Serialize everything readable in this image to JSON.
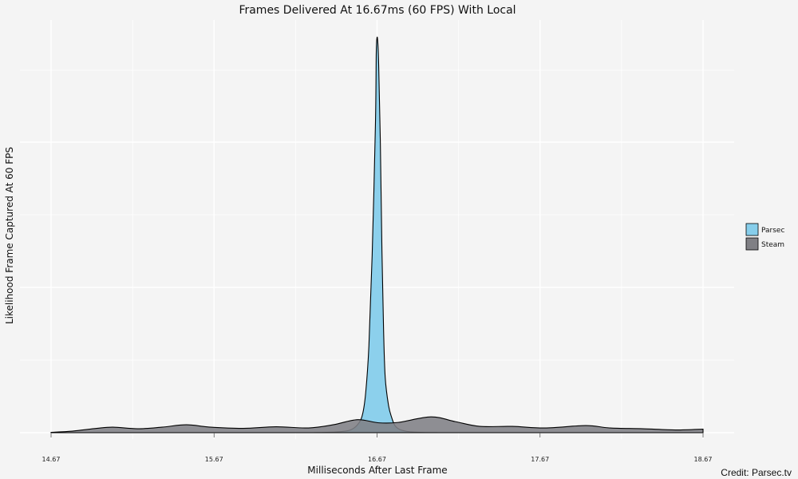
{
  "chart_data": {
    "type": "area",
    "title": "Frames Delivered At 16.67ms (60 FPS) With Local",
    "xlabel": "Milliseconds After Last Frame",
    "ylabel": "Likelihood Frame Captured At 60 FPS",
    "xlim": [
      14.67,
      18.67
    ],
    "ylim": [
      0,
      1.0
    ],
    "x_ticks": [
      "14.67",
      "15.67",
      "16.67",
      "17.67",
      "18.67"
    ],
    "y_tick_labels_shown": false,
    "grid": true,
    "legend": {
      "position": "right",
      "entries": [
        "Parsec",
        "Steam"
      ]
    },
    "colors": {
      "Parsec": "#87ceeb",
      "Steam": "#808085",
      "outline": "#000000",
      "grid": "#ffffff",
      "background": "#f4f4f4"
    },
    "series": [
      {
        "name": "Parsec",
        "points": [
          [
            16.28,
            0
          ],
          [
            16.42,
            0.002
          ],
          [
            16.5,
            0.006
          ],
          [
            16.55,
            0.02
          ],
          [
            16.58,
            0.045
          ],
          [
            16.6,
            0.1
          ],
          [
            16.62,
            0.22
          ],
          [
            16.64,
            0.45
          ],
          [
            16.66,
            0.78
          ],
          [
            16.665,
            0.96
          ],
          [
            16.67,
            1.0
          ],
          [
            16.675,
            0.985
          ],
          [
            16.68,
            0.93
          ],
          [
            16.69,
            0.74
          ],
          [
            16.7,
            0.46
          ],
          [
            16.71,
            0.26
          ],
          [
            16.72,
            0.14
          ],
          [
            16.74,
            0.07
          ],
          [
            16.76,
            0.038
          ],
          [
            16.78,
            0.018
          ],
          [
            16.81,
            0.008
          ],
          [
            16.86,
            0.003
          ],
          [
            16.95,
            0.0006
          ],
          [
            17.05,
            0
          ]
        ]
      },
      {
        "name": "Steam",
        "points": [
          [
            14.67,
            0.001
          ],
          [
            14.8,
            0.004
          ],
          [
            14.95,
            0.011
          ],
          [
            15.05,
            0.014
          ],
          [
            15.2,
            0.01
          ],
          [
            15.35,
            0.014
          ],
          [
            15.5,
            0.02
          ],
          [
            15.65,
            0.014
          ],
          [
            15.85,
            0.011
          ],
          [
            16.05,
            0.015
          ],
          [
            16.25,
            0.012
          ],
          [
            16.4,
            0.02
          ],
          [
            16.55,
            0.033
          ],
          [
            16.68,
            0.025
          ],
          [
            16.8,
            0.026
          ],
          [
            17.0,
            0.04
          ],
          [
            17.15,
            0.028
          ],
          [
            17.3,
            0.016
          ],
          [
            17.5,
            0.016
          ],
          [
            17.7,
            0.012
          ],
          [
            17.95,
            0.018
          ],
          [
            18.1,
            0.012
          ],
          [
            18.3,
            0.01
          ],
          [
            18.5,
            0.007
          ],
          [
            18.67,
            0.009
          ]
        ]
      }
    ]
  },
  "credit": "Credit: Parsec.tv"
}
